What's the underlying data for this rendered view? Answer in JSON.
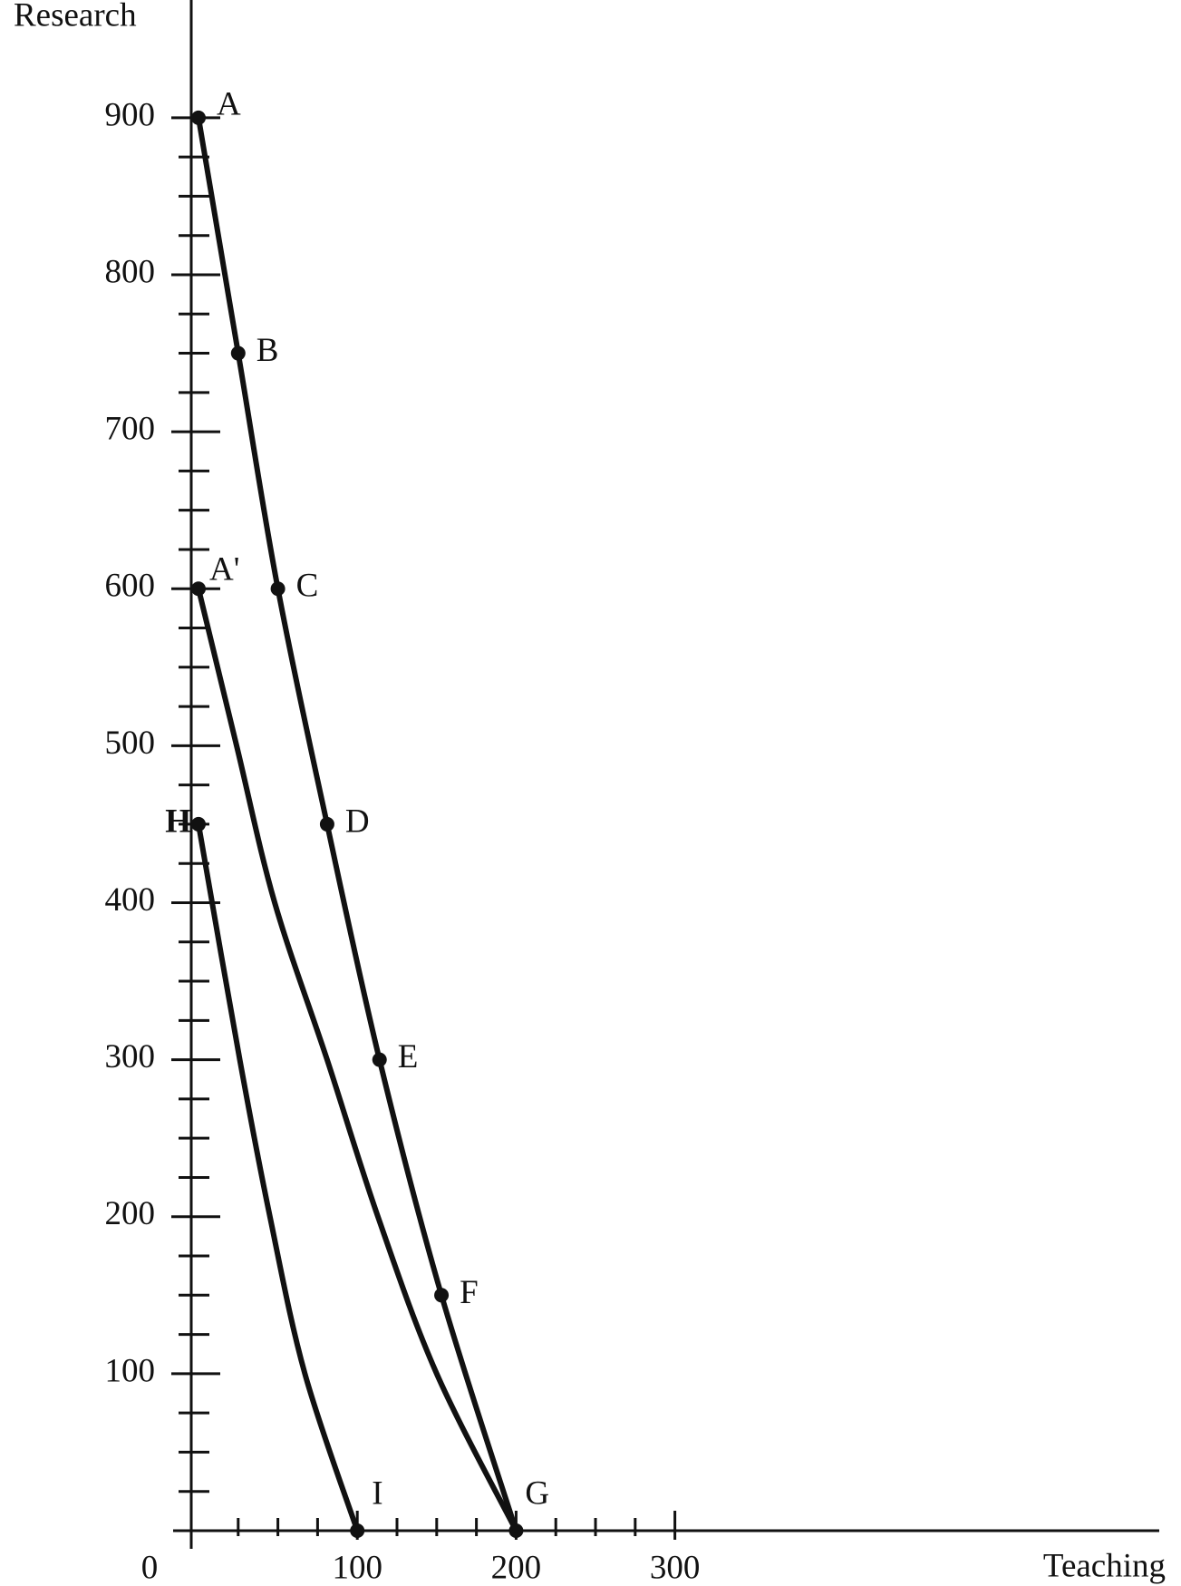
{
  "chart_data": {
    "type": "line",
    "y_label": "Research",
    "x_label": "Teaching",
    "xlim": [
      0,
      605
    ],
    "ylim": [
      0,
      975
    ],
    "xticks": [
      0,
      100,
      200,
      300
    ],
    "yticks": [
      100,
      200,
      300,
      400,
      500,
      600,
      700,
      800,
      900
    ],
    "xminor": [
      25,
      50,
      75,
      125,
      150,
      175,
      225,
      250,
      275
    ],
    "yminor": [
      25,
      50,
      75,
      125,
      150,
      175,
      225,
      250,
      275,
      325,
      350,
      375,
      425,
      450,
      475,
      525,
      550,
      575,
      625,
      650,
      675,
      725,
      750,
      775,
      825,
      850,
      875
    ],
    "color": "#111111",
    "series": [
      {
        "x": [
          0,
          25,
          50,
          81,
          114,
          153,
          200
        ],
        "values": [
          900,
          750,
          600,
          450,
          300,
          150,
          0
        ],
        "point_labels": [
          "A",
          "B",
          "C",
          "D",
          "E",
          "F",
          "G"
        ]
      },
      {
        "x": [
          0,
          24,
          48,
          81,
          113,
          150,
          200
        ],
        "values": [
          600,
          500,
          400,
          300,
          200,
          100,
          0
        ],
        "point_labels": [
          "A'",
          null,
          null,
          null,
          null,
          null,
          null
        ]
      },
      {
        "x": [
          0,
          26,
          45,
          67,
          100
        ],
        "values": [
          450,
          300,
          200,
          100,
          0
        ],
        "point_labels": [
          "H",
          null,
          null,
          null,
          "I"
        ]
      }
    ]
  }
}
